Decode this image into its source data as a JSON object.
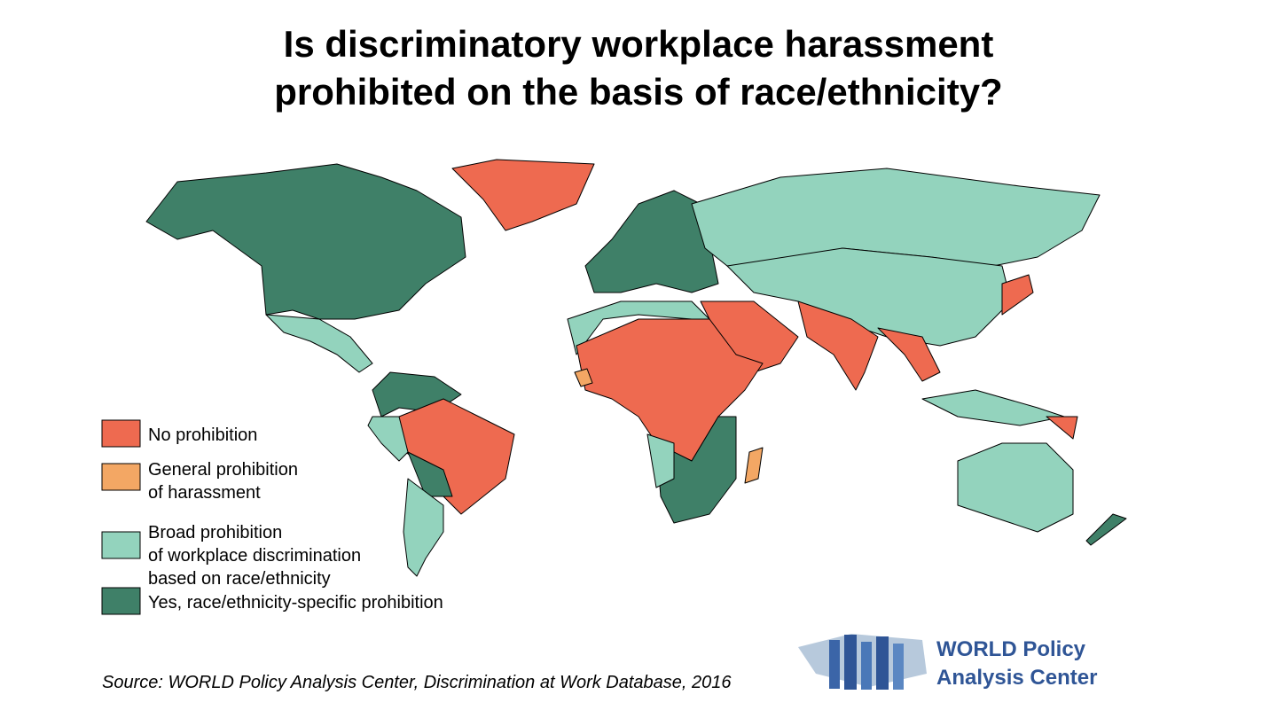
{
  "title": [
    "Is discriminatory workplace harassment",
    "prohibited on the basis of race/ethnicity?"
  ],
  "legend": [
    {
      "lines": [
        "No prohibition"
      ],
      "color": "#ee6a50"
    },
    {
      "lines": [
        "General prohibition",
        "of harassment"
      ],
      "color": "#f3a764"
    },
    {
      "lines": [
        "Broad prohibition",
        "of workplace discrimination",
        "based on race/ethnicity"
      ],
      "color": "#93d3bd"
    },
    {
      "lines": [
        "Yes, race/ethnicity-specific prohibition"
      ],
      "color": "#3f8068"
    }
  ],
  "source": "Source: WORLD Policy Analysis Center, Discrimination at Work Database, 2016",
  "logo": [
    "WORLD Policy",
    "Analysis Center"
  ]
}
